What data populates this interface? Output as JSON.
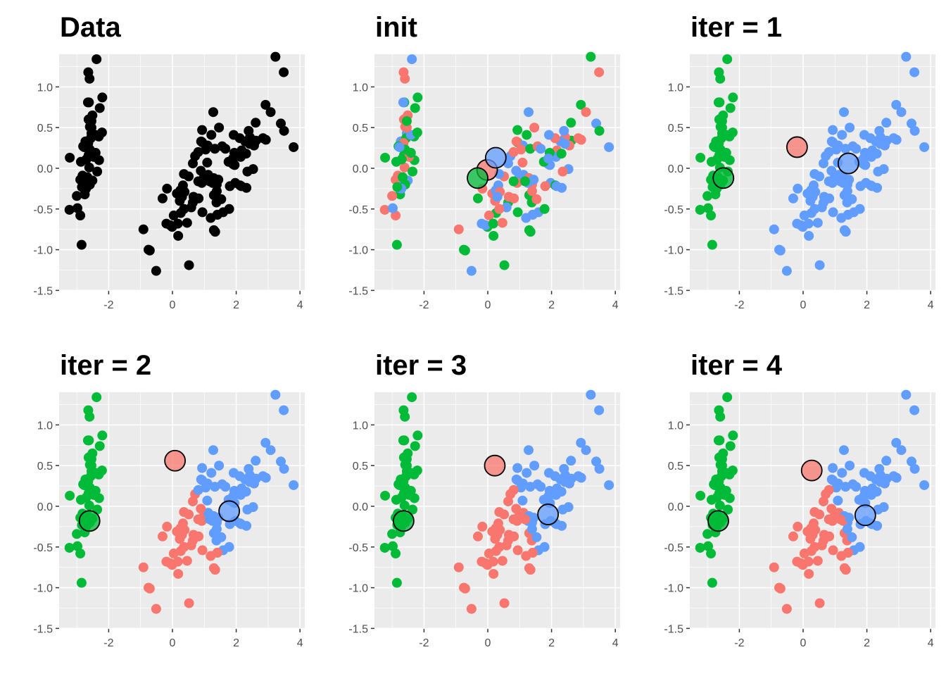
{
  "chart_data": {
    "type": "scatter",
    "layout": "2x3 facets",
    "colors": {
      "1": "#F8766D",
      "2": "#00BA38",
      "3": "#619CFF",
      "data": "#000000",
      "panel_bg": "#EBEBEB",
      "grid": "#FFFFFF",
      "centroid_stroke": "#000000"
    },
    "xlim": [
      -3.5,
      4.1
    ],
    "ylim": [
      -1.5,
      1.4
    ],
    "xticks": [
      -2,
      0,
      2,
      4
    ],
    "xtick_labels": [
      "-2",
      "0",
      "2",
      "4"
    ],
    "yticks": [
      -1.5,
      -1.0,
      -0.5,
      0.0,
      0.5,
      1.0
    ],
    "ytick_labels": [
      "-1.5",
      "-1.0",
      "-0.5",
      "0.0",
      "0.5",
      "1.0"
    ],
    "points": [
      [
        -2.68,
        0.32
      ],
      [
        -2.71,
        -0.18
      ],
      [
        -2.89,
        -0.14
      ],
      [
        -2.75,
        -0.32
      ],
      [
        -2.73,
        0.33
      ],
      [
        -2.28,
        0.74
      ],
      [
        -2.82,
        -0.09
      ],
      [
        -2.63,
        0.16
      ],
      [
        -2.89,
        -0.58
      ],
      [
        -2.67,
        -0.11
      ],
      [
        -2.51,
        0.65
      ],
      [
        -2.61,
        0.01
      ],
      [
        -2.79,
        -0.24
      ],
      [
        -3.23,
        -0.51
      ],
      [
        -2.64,
        1.18
      ],
      [
        -2.38,
        1.34
      ],
      [
        -2.62,
        0.81
      ],
      [
        -2.65,
        0.31
      ],
      [
        -2.2,
        0.87
      ],
      [
        -2.59,
        0.51
      ],
      [
        -2.31,
        0.39
      ],
      [
        -2.54,
        0.43
      ],
      [
        -3.22,
        0.13
      ],
      [
        -2.3,
        0.1
      ],
      [
        -2.36,
        -0.04
      ],
      [
        -2.51,
        -0.15
      ],
      [
        -2.47,
        0.14
      ],
      [
        -2.56,
        0.37
      ],
      [
        -2.64,
        0.31
      ],
      [
        -2.63,
        -0.19
      ],
      [
        -2.59,
        -0.2
      ],
      [
        -2.41,
        0.41
      ],
      [
        -2.65,
        0.81
      ],
      [
        -2.6,
        1.1
      ],
      [
        -2.67,
        -0.11
      ],
      [
        -2.87,
        0.08
      ],
      [
        -2.63,
        0.6
      ],
      [
        -2.8,
        0.27
      ],
      [
        -2.98,
        -0.49
      ],
      [
        -2.59,
        0.23
      ],
      [
        -2.77,
        0.26
      ],
      [
        -2.85,
        -0.94
      ],
      [
        -3.0,
        -0.34
      ],
      [
        -2.41,
        0.19
      ],
      [
        -2.21,
        0.44
      ],
      [
        -2.71,
        -0.25
      ],
      [
        -2.54,
        0.5
      ],
      [
        -2.84,
        -0.23
      ],
      [
        -2.54,
        0.58
      ],
      [
        -2.7,
        0.11
      ],
      [
        1.28,
        0.69
      ],
      [
        0.93,
        0.32
      ],
      [
        1.46,
        0.5
      ],
      [
        0.18,
        -0.83
      ],
      [
        1.09,
        0.07
      ],
      [
        0.64,
        -0.42
      ],
      [
        1.1,
        0.28
      ],
      [
        -0.75,
        -1.0
      ],
      [
        1.04,
        0.23
      ],
      [
        -0.01,
        -0.72
      ],
      [
        -0.51,
        -1.26
      ],
      [
        0.51,
        -0.1
      ],
      [
        0.26,
        -0.55
      ],
      [
        0.98,
        -0.12
      ],
      [
        -0.17,
        -0.25
      ],
      [
        0.93,
        0.47
      ],
      [
        0.66,
        -0.35
      ],
      [
        0.23,
        -0.33
      ],
      [
        0.94,
        -0.54
      ],
      [
        0.04,
        -0.58
      ],
      [
        1.12,
        -0.08
      ],
      [
        0.36,
        -0.07
      ],
      [
        1.3,
        -0.33
      ],
      [
        0.92,
        -0.18
      ],
      [
        0.71,
        0.15
      ],
      [
        0.9,
        0.33
      ],
      [
        1.33,
        0.24
      ],
      [
        1.56,
        0.27
      ],
      [
        0.81,
        -0.16
      ],
      [
        -0.31,
        -0.37
      ],
      [
        -0.07,
        -0.7
      ],
      [
        -0.19,
        -0.68
      ],
      [
        0.14,
        -0.31
      ],
      [
        1.38,
        -0.42
      ],
      [
        0.59,
        -0.48
      ],
      [
        0.81,
        0.2
      ],
      [
        1.22,
        0.41
      ],
      [
        0.82,
        -0.37
      ],
      [
        0.25,
        -0.27
      ],
      [
        0.17,
        -0.68
      ],
      [
        0.46,
        -0.67
      ],
      [
        0.89,
        -0.03
      ],
      [
        0.23,
        -0.4
      ],
      [
        -0.71,
        -1.01
      ],
      [
        0.36,
        -0.5
      ],
      [
        0.33,
        -0.21
      ],
      [
        0.38,
        -0.29
      ],
      [
        0.64,
        0.06
      ],
      [
        -0.91,
        -0.75
      ],
      [
        0.3,
        -0.35
      ],
      [
        2.53,
        -0.01
      ],
      [
        1.41,
        -0.57
      ],
      [
        2.62,
        0.34
      ],
      [
        1.97,
        -0.18
      ],
      [
        2.35,
        -0.04
      ],
      [
        3.4,
        0.55
      ],
      [
        0.52,
        -1.19
      ],
      [
        2.93,
        0.35
      ],
      [
        2.32,
        -0.24
      ],
      [
        2.92,
        0.78
      ],
      [
        1.66,
        0.24
      ],
      [
        1.8,
        -0.22
      ],
      [
        2.17,
        0.22
      ],
      [
        1.34,
        -0.78
      ],
      [
        1.59,
        -0.54
      ],
      [
        1.9,
        0.12
      ],
      [
        1.95,
        0.04
      ],
      [
        3.49,
        1.18
      ],
      [
        3.8,
        0.26
      ],
      [
        1.3,
        -0.76
      ],
      [
        2.43,
        0.38
      ],
      [
        1.2,
        -0.61
      ],
      [
        3.5,
        0.46
      ],
      [
        1.39,
        -0.2
      ],
      [
        2.28,
        0.33
      ],
      [
        2.61,
        0.56
      ],
      [
        1.26,
        -0.18
      ],
      [
        1.29,
        -0.12
      ],
      [
        2.12,
        -0.21
      ],
      [
        2.39,
        0.46
      ],
      [
        2.84,
        0.37
      ],
      [
        3.23,
        1.37
      ],
      [
        2.16,
        -0.22
      ],
      [
        1.44,
        -0.14
      ],
      [
        1.78,
        -0.5
      ],
      [
        3.08,
        0.69
      ],
      [
        2.14,
        0.14
      ],
      [
        1.9,
        0.05
      ],
      [
        1.17,
        -0.16
      ],
      [
        2.11,
        0.37
      ],
      [
        2.31,
        0.18
      ],
      [
        1.92,
        0.41
      ],
      [
        1.41,
        -0.57
      ],
      [
        2.56,
        0.28
      ],
      [
        2.42,
        0.3
      ],
      [
        1.94,
        0.19
      ],
      [
        1.53,
        -0.38
      ],
      [
        1.76,
        0.08
      ],
      [
        1.9,
        0.12
      ],
      [
        1.39,
        -0.28
      ]
    ],
    "panels": [
      {
        "title": "Data",
        "labels": "none",
        "centroids": []
      },
      {
        "title": "init",
        "labels": "random",
        "centroids": [
          {
            "cluster": 1,
            "x": -0.02,
            "y": -0.02
          },
          {
            "cluster": 2,
            "x": -0.32,
            "y": -0.12
          },
          {
            "cluster": 3,
            "x": 0.25,
            "y": 0.13
          }
        ]
      },
      {
        "title": "iter = 1",
        "labels": "iter1",
        "centroids": [
          {
            "cluster": 1,
            "x": -0.19,
            "y": 0.26
          },
          {
            "cluster": 2,
            "x": -2.5,
            "y": -0.12
          },
          {
            "cluster": 3,
            "x": 1.42,
            "y": 0.06
          }
        ]
      },
      {
        "title": "iter = 2",
        "labels": "iter2",
        "centroids": [
          {
            "cluster": 1,
            "x": 0.08,
            "y": 0.56
          },
          {
            "cluster": 2,
            "x": -2.6,
            "y": -0.18
          },
          {
            "cluster": 3,
            "x": 1.78,
            "y": -0.06
          }
        ]
      },
      {
        "title": "iter = 3",
        "labels": "iter3",
        "centroids": [
          {
            "cluster": 1,
            "x": 0.22,
            "y": 0.5
          },
          {
            "cluster": 2,
            "x": -2.64,
            "y": -0.18
          },
          {
            "cluster": 3,
            "x": 1.89,
            "y": -0.1
          }
        ]
      },
      {
        "title": "iter = 4",
        "labels": "iter4",
        "centroids": [
          {
            "cluster": 1,
            "x": 0.27,
            "y": 0.44
          },
          {
            "cluster": 2,
            "x": -2.66,
            "y": -0.18
          },
          {
            "cluster": 3,
            "x": 1.95,
            "y": -0.11
          }
        ]
      }
    ],
    "random_init_labels": [
      2,
      2,
      1,
      2,
      3,
      2,
      1,
      2,
      1,
      2,
      1,
      1,
      3,
      1,
      1,
      3,
      2,
      2,
      2,
      1,
      2,
      3,
      2,
      2,
      2,
      3,
      1,
      2,
      1,
      3,
      2,
      3,
      3,
      1,
      2,
      2,
      1,
      2,
      3,
      2,
      3,
      2,
      1,
      2,
      2,
      3,
      1,
      2,
      2,
      2,
      3,
      2,
      1,
      2,
      1,
      2,
      3,
      2,
      1,
      2,
      3,
      1,
      2,
      3,
      1,
      2,
      1,
      3,
      2,
      1,
      3,
      3,
      2,
      1,
      3,
      1,
      2,
      1,
      2,
      2,
      3,
      3,
      1,
      2,
      3,
      1,
      2,
      1,
      3,
      2,
      1,
      3,
      1,
      2,
      1,
      3,
      1,
      3,
      1,
      3,
      3,
      1,
      2,
      3,
      1,
      3,
      2,
      1,
      3,
      2,
      3,
      1,
      1,
      2,
      3,
      1,
      3,
      1,
      3,
      2,
      1,
      3,
      2,
      1,
      3,
      2,
      3,
      1,
      2,
      3,
      1,
      2,
      3,
      3,
      2,
      1,
      3,
      3,
      2,
      1,
      2,
      3,
      3,
      1,
      3,
      2,
      1,
      2,
      3,
      1
    ]
  }
}
